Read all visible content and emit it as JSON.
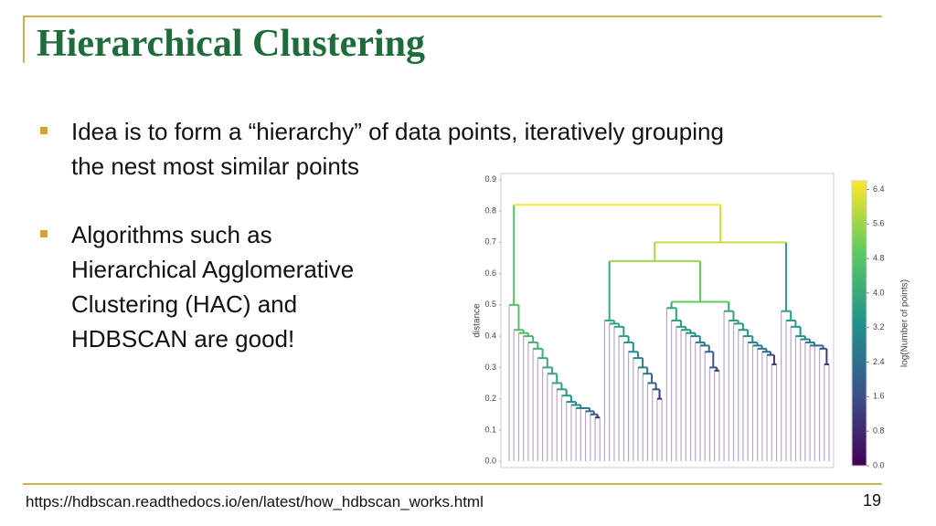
{
  "slide": {
    "title": "Hierarchical Clustering",
    "bullets": [
      {
        "lines": [
          "Idea is to form a “hierarchy” of data points, iteratively grouping",
          "the nest most similar points"
        ]
      },
      {
        "lines": [
          "Algorithms such as",
          "Hierarchical Agglomerative",
          "Clustering (HAC) and",
          "HDBSCAN are good!"
        ]
      }
    ],
    "footer": "https://hdbscan.readthedocs.io/en/latest/how_hdbscan_works.html",
    "page_number": "19"
  },
  "chart_data": {
    "type": "dendrogram",
    "y_label": "distance",
    "ylim": [
      -0.02,
      0.92
    ],
    "yticks": [
      {
        "value": 0,
        "label": "0.0"
      },
      0.1,
      0.2,
      0.3,
      0.4,
      0.5,
      0.6,
      0.7,
      0.8,
      0.9
    ],
    "colorbar_label": "log(Number of points)",
    "clim": [
      0,
      6.6
    ],
    "cticks": [
      {
        "value": 0,
        "label": "0.0"
      },
      0.8,
      1.6,
      2.4,
      3.2,
      {
        "value": 4,
        "label": "4.0"
      },
      4.8,
      5.6,
      6.4
    ],
    "tree": {
      "height": 0.82,
      "children": [
        {
          "steps": [
            0.5,
            0.42,
            0.41,
            0.4,
            0.38,
            0.36,
            0.33,
            0.3,
            0.28,
            0.25,
            0.23,
            0.21,
            0.19,
            0.18,
            0.17,
            0.17,
            0.16,
            0.15,
            0.14
          ]
        },
        {
          "height": 0.7,
          "children": [
            {
              "height": 0.64,
              "children": [
                {
                  "steps": [
                    0.45,
                    0.44,
                    0.43,
                    0.4,
                    0.38,
                    0.35,
                    0.33,
                    0.3,
                    0.28,
                    0.25,
                    0.23,
                    0.2
                  ]
                },
                {
                  "height": 0.51,
                  "children": [
                    {
                      "steps": [
                        0.49,
                        0.45,
                        0.43,
                        0.42,
                        0.41,
                        0.4,
                        0.38,
                        0.37,
                        0.35,
                        0.3,
                        0.29
                      ]
                    },
                    {
                      "steps": [
                        0.48,
                        0.45,
                        0.44,
                        0.42,
                        0.4,
                        0.38,
                        0.37,
                        0.36,
                        0.35,
                        0.34,
                        0.31
                      ]
                    }
                  ]
                }
              ]
            },
            {
              "steps": [
                0.48,
                0.45,
                0.43,
                0.4,
                0.39,
                0.38,
                0.37,
                0.37,
                0.36,
                0.31
              ]
            }
          ]
        }
      ]
    }
  }
}
